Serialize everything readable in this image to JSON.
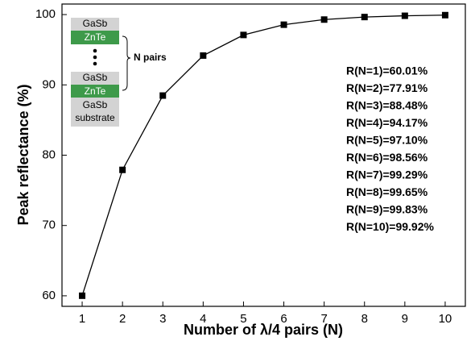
{
  "chart_data": {
    "type": "line",
    "x": [
      1,
      2,
      3,
      4,
      5,
      6,
      7,
      8,
      9,
      10
    ],
    "values": [
      60.01,
      77.91,
      88.48,
      94.17,
      97.1,
      98.56,
      99.29,
      99.65,
      99.83,
      99.92
    ],
    "color": "#000000",
    "xlabel": "Number of λ/4 pairs (N)",
    "ylabel": "Peak reflectance (%)",
    "xlim": [
      0.5,
      10.5
    ],
    "xticks": [
      1,
      2,
      3,
      4,
      5,
      6,
      7,
      8,
      9,
      10
    ],
    "ylim": [
      58.5,
      101.5
    ],
    "yticks": [
      60,
      70,
      80,
      90,
      100
    ],
    "grid": false,
    "annotations": [
      "R(N=1)=60.01%",
      "R(N=2)=77.91%",
      "R(N=3)=88.48%",
      "R(N=4)=94.17%",
      "R(N=5)=97.10%",
      "R(N=6)=98.56%",
      "R(N=7)=99.29%",
      "R(N=8)=99.65%",
      "R(N=9)=99.83%",
      "R(N=10)=99.92%"
    ],
    "inset": {
      "top_layers": [
        "GaSb",
        "ZnTe"
      ],
      "bottom_layers": [
        "GaSb",
        "ZnTe"
      ],
      "substrate": [
        "GaSb",
        "substrate"
      ],
      "bracket_label": "N pairs"
    }
  }
}
